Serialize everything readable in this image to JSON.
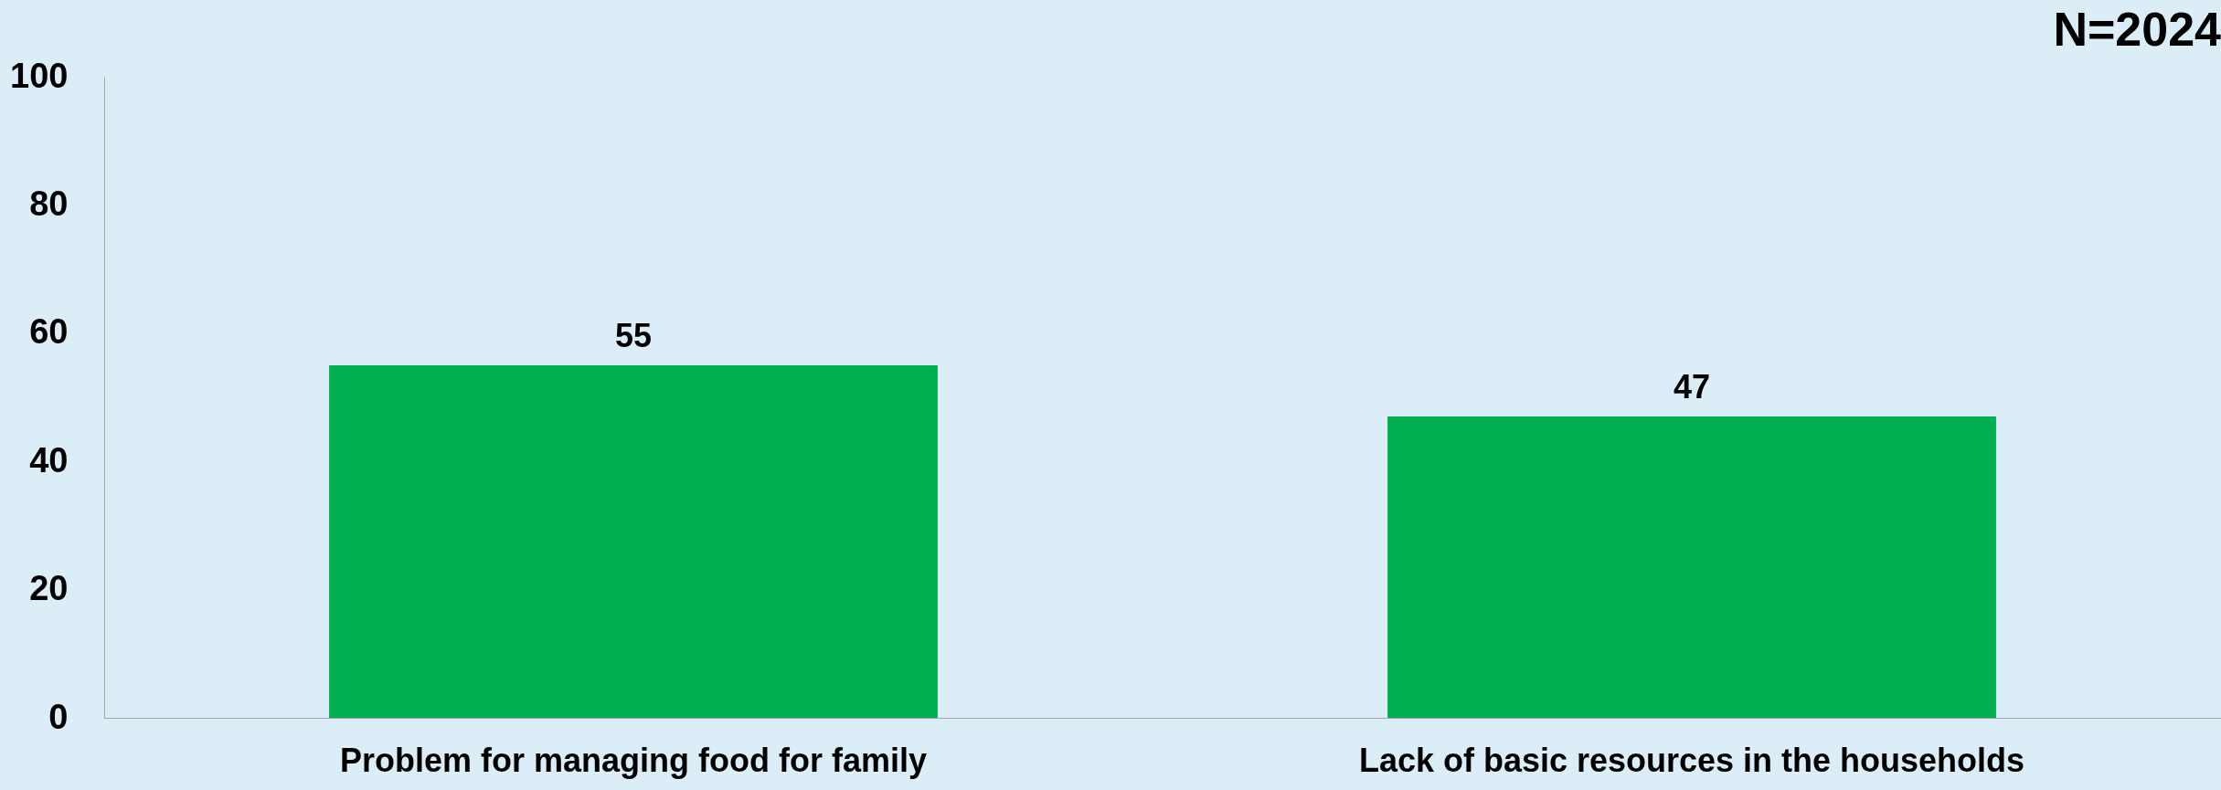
{
  "chart_data": {
    "type": "bar",
    "title": "N=2024",
    "categories": [
      "Problem for managing food for family",
      "Lack of basic resources in the households"
    ],
    "values": [
      55,
      47
    ],
    "color": "#00b050",
    "ylim": [
      0,
      100
    ],
    "yticks": [
      0,
      20,
      40,
      60,
      80,
      100
    ],
    "data_labels": true
  }
}
